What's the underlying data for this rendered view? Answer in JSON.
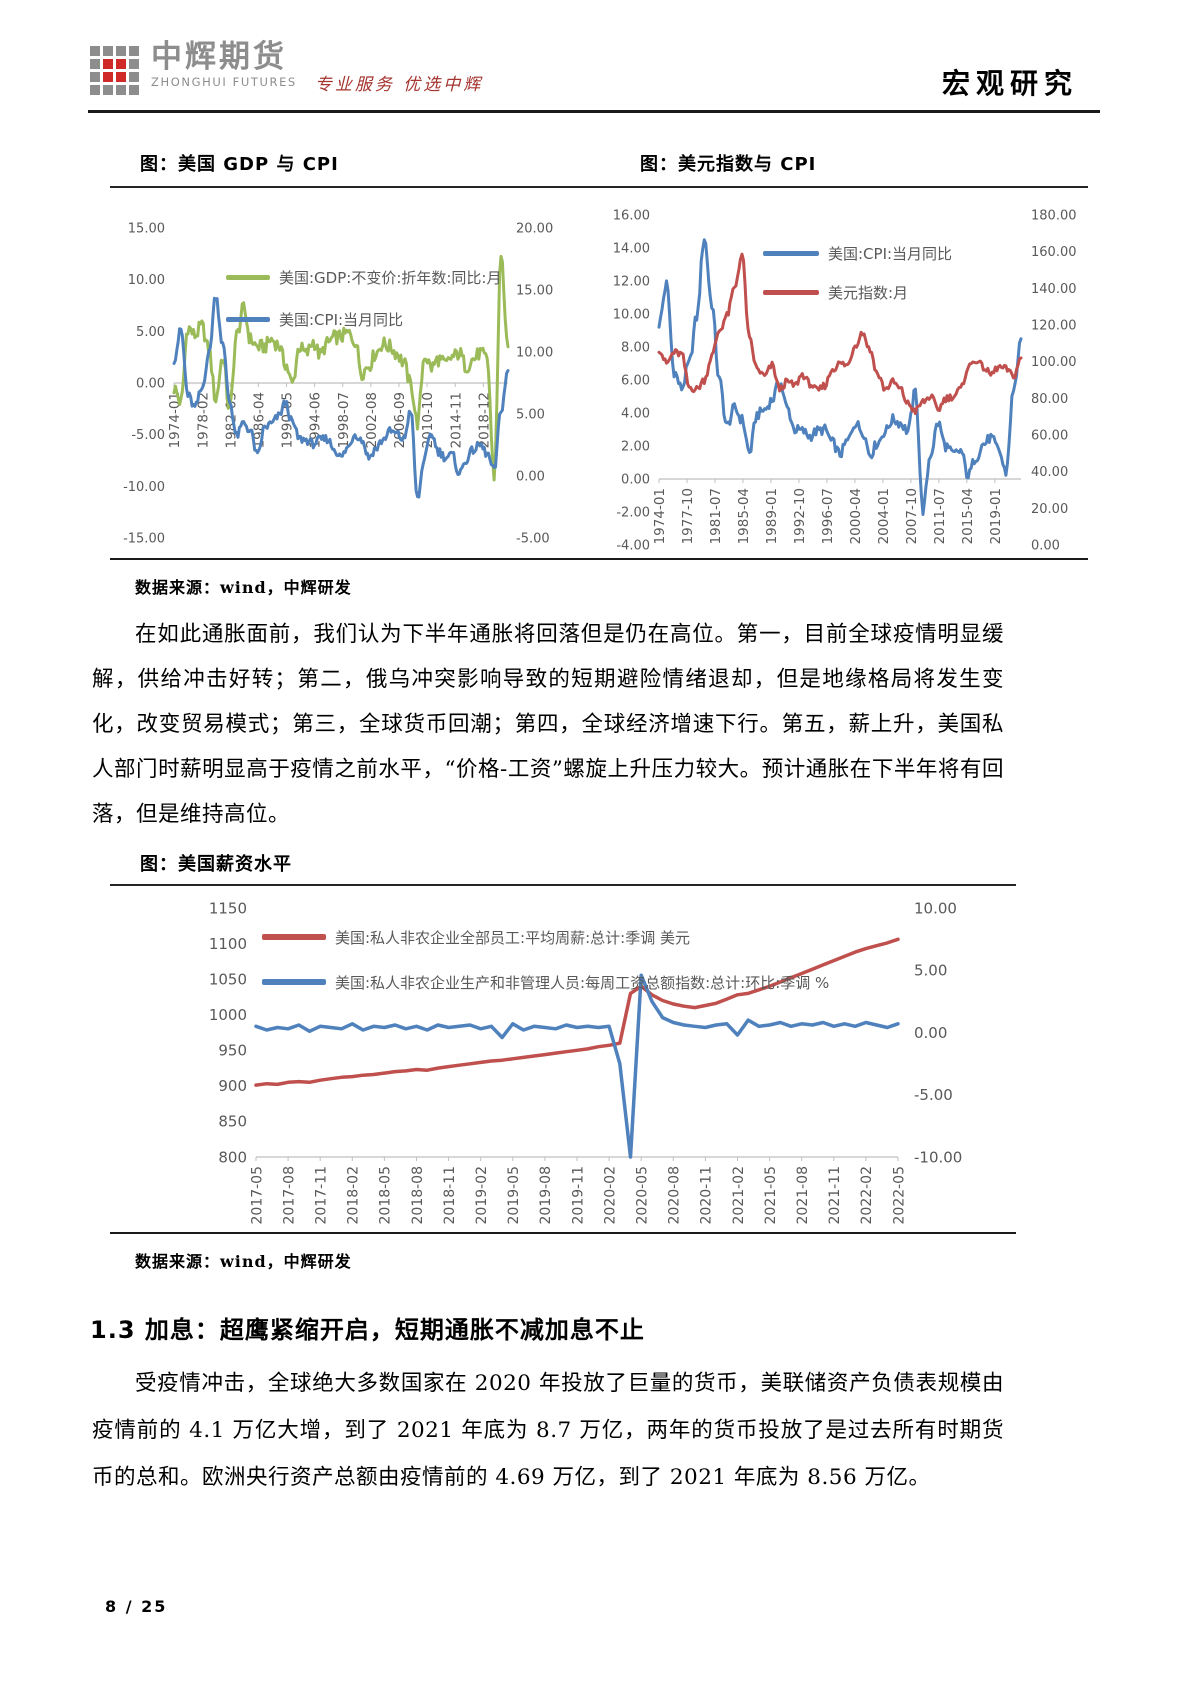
{
  "header": {
    "logo_cn": "中辉期货",
    "logo_en": "ZHONGHUI FUTURES",
    "tagline": "专业服务 优选中辉",
    "doc_type": "宏观研究"
  },
  "sources": {
    "fig12": "数据来源：wind，中辉研发",
    "fig3": "数据来源：wind，中辉研发"
  },
  "body": {
    "p1": "在如此通胀面前，我们认为下半年通胀将回落但是仍在高位。第一，目前全球疫情明显缓解，供给冲击好转；第二，俄乌冲突影响导致的短期避险情绪退却，但是地缘格局将发生变化，改变贸易模式；第三，全球货币回潮；第四，全球经济增速下行。第五，薪上升，美国私人部门时薪明显高于疫情之前水平，“价格-工资”螺旋上升压力较大。预计通胀在下半年将有回落，但是维持高位。",
    "section_heading": "1.3 加息：超鹰紧缩开启，短期通胀不减加息不止",
    "p2": "受疫情冲击，全球绝大多数国家在 2020 年投放了巨量的货币，美联储资产负债表规模由疫情前的 4.1 万亿大增，到了 2021 年底为 8.7 万亿，两年的货币投放了是过去所有时期货币的总和。欧洲央行资产总额由疫情前的 4.69 万亿，到了 2021 年底为 8.56 万亿。"
  },
  "footer": {
    "page_number": "8 / 25"
  },
  "colors": {
    "brand_red": "#cf2a27",
    "logo_gray": "#8d8d8d",
    "tagline_red": "#a5342f",
    "series_green": "#9BBB59",
    "series_blue": "#4F81BD",
    "series_red": "#C0504D",
    "axis_text": "#595959",
    "axis_line": "#bfbfbf"
  },
  "chart_data": [
    {
      "id": "fig1",
      "type": "line",
      "title": "图：美国 GDP 与 CPI",
      "x_start": "1974-01",
      "x_end": "2022-06",
      "x_tick_step": 49,
      "x_total": 582,
      "x_tick_labels": [
        "1974-01",
        "1978-02",
        "1982-03",
        "1986-04",
        "1990-05",
        "1994-06",
        "1998-07",
        "2002-08",
        "2006-09",
        "2010-10",
        "2014-11",
        "2018-12"
      ],
      "left_axis": {
        "min": -15,
        "max": 15,
        "cross": 0,
        "ticks": [
          "15.00",
          "10.00",
          "5.00",
          "0.00",
          "-5.00",
          "-10.00",
          "-15.00"
        ]
      },
      "right_axis": {
        "min": -5,
        "max": 20,
        "ticks": [
          "20.00",
          "15.00",
          "10.00",
          "5.00",
          "0.00",
          "-5.00"
        ]
      },
      "legend_position": "inside-upper-left",
      "series": [
        {
          "name": "美国:GDP:不变价:折年数:同比:月",
          "color": "#9BBB59",
          "axis": "left",
          "up": 5,
          "jitter": 0.7,
          "anchor_years": "1974-2022 (yearly anchors of monthly series)",
          "values": [
            -0.5,
            -1.9,
            5.4,
            4.6,
            5.5,
            3.2,
            -1.6,
            2.5,
            -2.6,
            4.6,
            7.2,
            4.2,
            3.5,
            3.5,
            4.2,
            3.7,
            1.9,
            -0.1,
            3.5,
            2.8,
            4.0,
            2.7,
            3.8,
            4.4,
            4.5,
            4.8,
            4.1,
            1.0,
            1.7,
            2.9,
            3.8,
            3.5,
            2.9,
            2.0,
            -0.1,
            -3.9,
            2.7,
            1.5,
            2.3,
            1.8,
            2.5,
            2.9,
            1.6,
            2.3,
            2.9,
            2.3,
            -9.0,
            12.2,
            3.5
          ]
        },
        {
          "name": "美国:CPI:当月同比",
          "color": "#4F81BD",
          "axis": "right",
          "up": 5,
          "jitter": 0.35,
          "anchor_years": "1974-2022 (yearly anchors of monthly series)",
          "values": [
            9.4,
            11.8,
            6.5,
            5.5,
            7.0,
            9.8,
            14.6,
            10.6,
            6.0,
            3.2,
            4.3,
            3.6,
            1.6,
            3.9,
            4.2,
            4.8,
            5.9,
            4.3,
            3.0,
            2.9,
            2.6,
            2.9,
            3.0,
            2.2,
            1.5,
            2.3,
            3.4,
            2.9,
            1.5,
            2.2,
            2.9,
            3.6,
            3.4,
            2.9,
            5.3,
            -1.9,
            1.5,
            3.4,
            2.0,
            1.5,
            1.7,
            0.2,
            1.3,
            2.1,
            2.5,
            1.8,
            0.4,
            5.3,
            8.5
          ]
        }
      ]
    },
    {
      "id": "fig2",
      "type": "line",
      "title": "图：美元指数与 CPI",
      "x_start": "1974-01",
      "x_end": "2022-06",
      "x_tick_step": 45,
      "x_total": 582,
      "x_tick_labels": [
        "1974-01",
        "1977-10",
        "1981-07",
        "1985-04",
        "1989-01",
        "1992-10",
        "1996-07",
        "2000-04",
        "2004-01",
        "2007-10",
        "2011-07",
        "2015-04",
        "2019-01"
      ],
      "left_axis": {
        "min": -4,
        "max": 16,
        "cross": 0,
        "ticks": [
          "16.00",
          "14.00",
          "12.00",
          "10.00",
          "8.00",
          "6.00",
          "4.00",
          "2.00",
          "0.00",
          "-2.00",
          "-4.00"
        ]
      },
      "right_axis": {
        "min": 0,
        "max": 180,
        "ticks": [
          "180.00",
          "160.00",
          "140.00",
          "120.00",
          "100.00",
          "80.00",
          "60.00",
          "40.00",
          "20.00",
          "0.00"
        ]
      },
      "legend_position": "inside-upper-middle",
      "series": [
        {
          "name": "美国:CPI:当月同比",
          "color": "#4F81BD",
          "axis": "left",
          "up": 5,
          "jitter": 0.32,
          "anchor_years": "1974-2022 (yearly anchors of monthly series)",
          "values": [
            9.4,
            11.8,
            6.5,
            5.5,
            7.0,
            9.8,
            14.6,
            10.6,
            6.0,
            3.2,
            4.3,
            3.6,
            1.6,
            3.9,
            4.2,
            4.8,
            5.9,
            4.3,
            3.0,
            2.9,
            2.6,
            2.9,
            3.0,
            2.2,
            1.5,
            2.3,
            3.4,
            2.9,
            1.5,
            2.2,
            2.9,
            3.6,
            3.4,
            2.9,
            5.3,
            -1.9,
            1.5,
            3.4,
            2.0,
            1.5,
            1.7,
            0.2,
            1.3,
            2.1,
            2.5,
            1.8,
            0.4,
            5.3,
            8.5
          ]
        },
        {
          "name": "美元指数:月",
          "color": "#C0504D",
          "axis": "right",
          "up": 5,
          "jitter": 2.0,
          "anchor_years": "1974-2022 (yearly anchors of monthly series)",
          "values": [
            107,
            99,
            105,
            104,
            86,
            85,
            90,
            103,
            117,
            125,
            140,
            158,
            112,
            96,
            92,
            98,
            85,
            89,
            87,
            93,
            88,
            84,
            87,
            96,
            99,
            98,
            109,
            116,
            106,
            93,
            85,
            89,
            85,
            77,
            73,
            78,
            81,
            74,
            80,
            81,
            85,
            97,
            101,
            97,
            93,
            97,
            96,
            92,
            102
          ]
        }
      ]
    },
    {
      "id": "fig3",
      "type": "line",
      "title": "图：美国薪资水平",
      "x_start": "2017-05",
      "x_end": "2022-05",
      "x_tick_step": 3,
      "x_total": 60,
      "x_tick_labels": [
        "2017-05",
        "2017-08",
        "2017-11",
        "2018-02",
        "2018-05",
        "2018-08",
        "2018-11",
        "2019-02",
        "2019-05",
        "2019-08",
        "2019-11",
        "2020-02",
        "2020-05",
        "2020-08",
        "2020-11",
        "2021-02",
        "2021-05",
        "2021-08",
        "2021-11",
        "2022-02",
        "2022-05"
      ],
      "left_axis": {
        "min": 800,
        "max": 1150,
        "cross": 800,
        "ticks": [
          "1150",
          "1100",
          "1050",
          "1000",
          "950",
          "900",
          "850",
          "800"
        ]
      },
      "right_axis": {
        "min": -10,
        "max": 10,
        "ticks": [
          "10.00",
          "5.00",
          "0.00",
          "-5.00",
          "-10.00"
        ]
      },
      "legend_position": "inside-upper-left",
      "series": [
        {
          "name": "美国:私人非农企业全部员工:平均周薪:总计:季调 美元",
          "color": "#C0504D",
          "axis": "left",
          "up": 1,
          "jitter": 0,
          "x_frequency": "monthly 2017-05 to 2022-05",
          "values": [
            901,
            903,
            902,
            905,
            906,
            905,
            908,
            910,
            912,
            913,
            915,
            916,
            918,
            920,
            921,
            923,
            922,
            925,
            927,
            929,
            931,
            933,
            935,
            936,
            938,
            940,
            942,
            944,
            946,
            948,
            950,
            952,
            955,
            957,
            960,
            1030,
            1040,
            1028,
            1020,
            1015,
            1012,
            1010,
            1013,
            1016,
            1022,
            1028,
            1030,
            1035,
            1040,
            1046,
            1052,
            1058,
            1064,
            1070,
            1076,
            1082,
            1088,
            1093,
            1097,
            1101,
            1106
          ]
        },
        {
          "name": "美国:私人非农企业生产和非管理人员:每周工资总额指数:总计:环比:季调 %",
          "color": "#4F81BD",
          "axis": "right",
          "up": 1,
          "jitter": 0,
          "x_frequency": "monthly 2017-05 to 2022-05",
          "values": [
            0.5,
            0.2,
            0.4,
            0.3,
            0.6,
            0.1,
            0.5,
            0.4,
            0.3,
            0.7,
            0.2,
            0.5,
            0.4,
            0.6,
            0.3,
            0.5,
            0.2,
            0.6,
            0.4,
            0.5,
            0.6,
            0.3,
            0.5,
            -0.4,
            0.7,
            0.2,
            0.5,
            0.4,
            0.3,
            0.6,
            0.4,
            0.5,
            0.4,
            0.5,
            -2.5,
            -10.8,
            4.6,
            2.5,
            1.2,
            0.8,
            0.6,
            0.5,
            0.4,
            0.6,
            0.7,
            -0.2,
            1.0,
            0.5,
            0.6,
            0.8,
            0.5,
            0.7,
            0.6,
            0.8,
            0.5,
            0.7,
            0.5,
            0.8,
            0.6,
            0.4,
            0.7
          ]
        }
      ]
    }
  ]
}
